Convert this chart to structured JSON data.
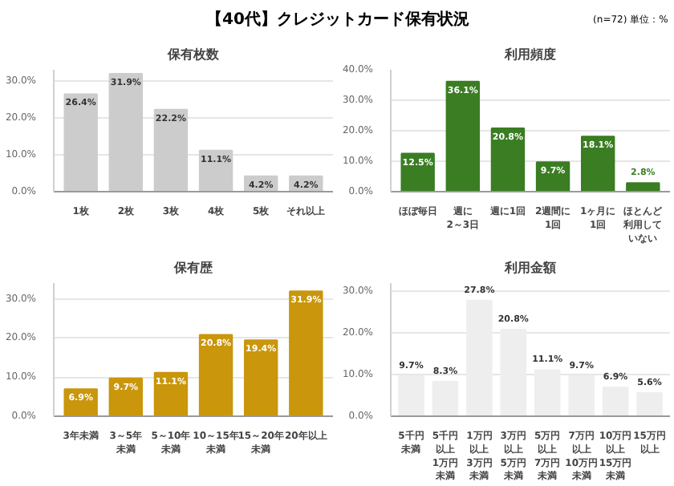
{
  "chart_data": [
    {
      "type": "bar",
      "title": "保有枚数",
      "annotations": [
        "【40代】クレジットカード保有状況",
        "(n=72) 単位：%"
      ],
      "categories": [
        "1枚",
        "2枚",
        "3枚",
        "4枚",
        "5枚",
        "それ以上"
      ],
      "values": [
        26.4,
        31.9,
        22.2,
        11.1,
        4.2,
        4.2
      ],
      "value_labels": [
        "26.4%",
        "31.9%",
        "22.2%",
        "11.1%",
        "4.2%",
        "4.2%"
      ],
      "color": "#cccccc",
      "ylim": [
        0,
        33
      ],
      "yticks": [
        {
          "value": 0,
          "label": "0.0%"
        },
        {
          "value": 10,
          "label": "10.0%"
        },
        {
          "value": 20,
          "label": "20.0%"
        },
        {
          "value": 30,
          "label": "30.0%"
        }
      ],
      "grid": "y"
    },
    {
      "type": "bar",
      "title": "利用頻度",
      "categories": [
        "ほぼ毎日",
        "週に2～3日",
        "週に1回",
        "2週間に1回",
        "1ヶ月に1回",
        "ほとんど利用していない"
      ],
      "values": [
        12.5,
        36.1,
        20.8,
        9.7,
        18.1,
        2.8
      ],
      "value_labels": [
        "12.5%",
        "36.1%",
        "20.8%",
        "9.7%",
        "18.1%",
        "2.8%"
      ],
      "color": "#3a7d22",
      "ylim": [
        0,
        40
      ],
      "yticks": [
        {
          "value": 0,
          "label": "0.0%"
        },
        {
          "value": 10,
          "label": "10.0%"
        },
        {
          "value": 20,
          "label": "20.0%"
        },
        {
          "value": 30,
          "label": "30.0%"
        },
        {
          "value": 40,
          "label": "40.0%"
        }
      ],
      "grid": "y"
    },
    {
      "type": "bar",
      "title": "保有歴",
      "categories": [
        "3年未満",
        "3～5年未満",
        "5～10年未満",
        "10～15年未満",
        "15～20年未満",
        "20年以上"
      ],
      "values": [
        6.9,
        9.7,
        11.1,
        20.8,
        19.4,
        31.9
      ],
      "value_labels": [
        "6.9%",
        "9.7%",
        "11.1%",
        "20.8%",
        "19.4%",
        "31.9%"
      ],
      "color": "#c9960c",
      "ylim": [
        0,
        34
      ],
      "yticks": [
        {
          "value": 0,
          "label": "0.0%"
        },
        {
          "value": 10,
          "label": "10.0%"
        },
        {
          "value": 20,
          "label": "20.0%"
        },
        {
          "value": 30,
          "label": "30.0%"
        }
      ],
      "grid": "y"
    },
    {
      "type": "bar",
      "title": "利用金額",
      "categories": [
        "5千円未満",
        "5千円以上1万円未満",
        "1万円以上3万円未満",
        "3万円以上5万円未満",
        "5万円以上7万円未満",
        "7万円以上10万円未満",
        "10万円以上15万円未満",
        "15万円以上"
      ],
      "values": [
        9.7,
        8.3,
        27.8,
        20.8,
        11.1,
        9.7,
        6.9,
        5.6
      ],
      "value_labels": [
        "9.7%",
        "8.3%",
        "27.8%",
        "20.8%",
        "11.1%",
        "9.7%",
        "6.9%",
        "5.6%"
      ],
      "color": "#eeeeee",
      "ylim": [
        0,
        32
      ],
      "yticks": [
        {
          "value": 0,
          "label": "0.0%"
        },
        {
          "value": 10,
          "label": "10.0%"
        },
        {
          "value": 20,
          "label": "20.0%"
        },
        {
          "value": 30,
          "label": "30.0%"
        }
      ],
      "grid": "y"
    }
  ]
}
